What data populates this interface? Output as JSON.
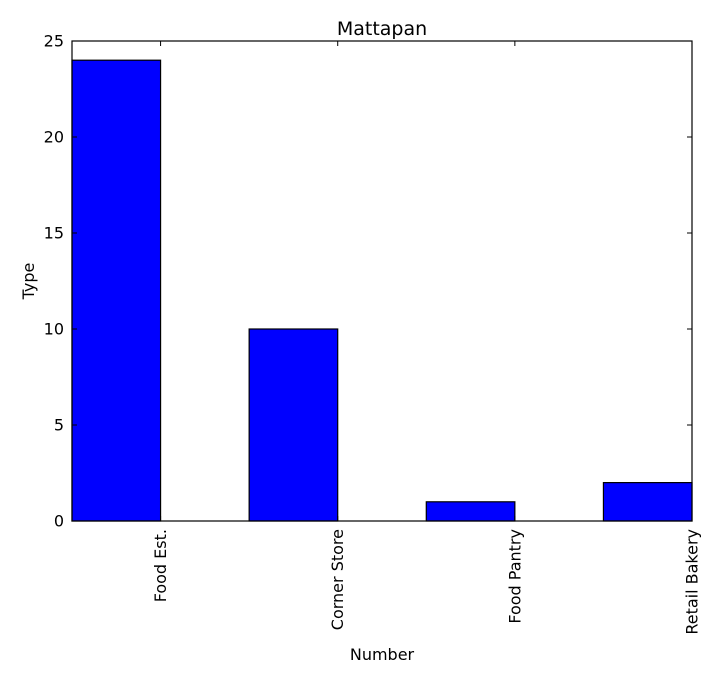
{
  "chart_data": {
    "type": "bar",
    "title": "Mattapan",
    "xlabel": "Number",
    "ylabel": "Type",
    "categories": [
      "Food Est.",
      "Corner Store",
      "Food Pantry",
      "Retail Bakery"
    ],
    "values": [
      24,
      10,
      1,
      2
    ],
    "ylim": [
      0,
      25
    ],
    "yticks": [
      0,
      5,
      10,
      15,
      20,
      25
    ],
    "grid": false,
    "bar_color": "#0000ff",
    "edge_color": "#000000"
  }
}
